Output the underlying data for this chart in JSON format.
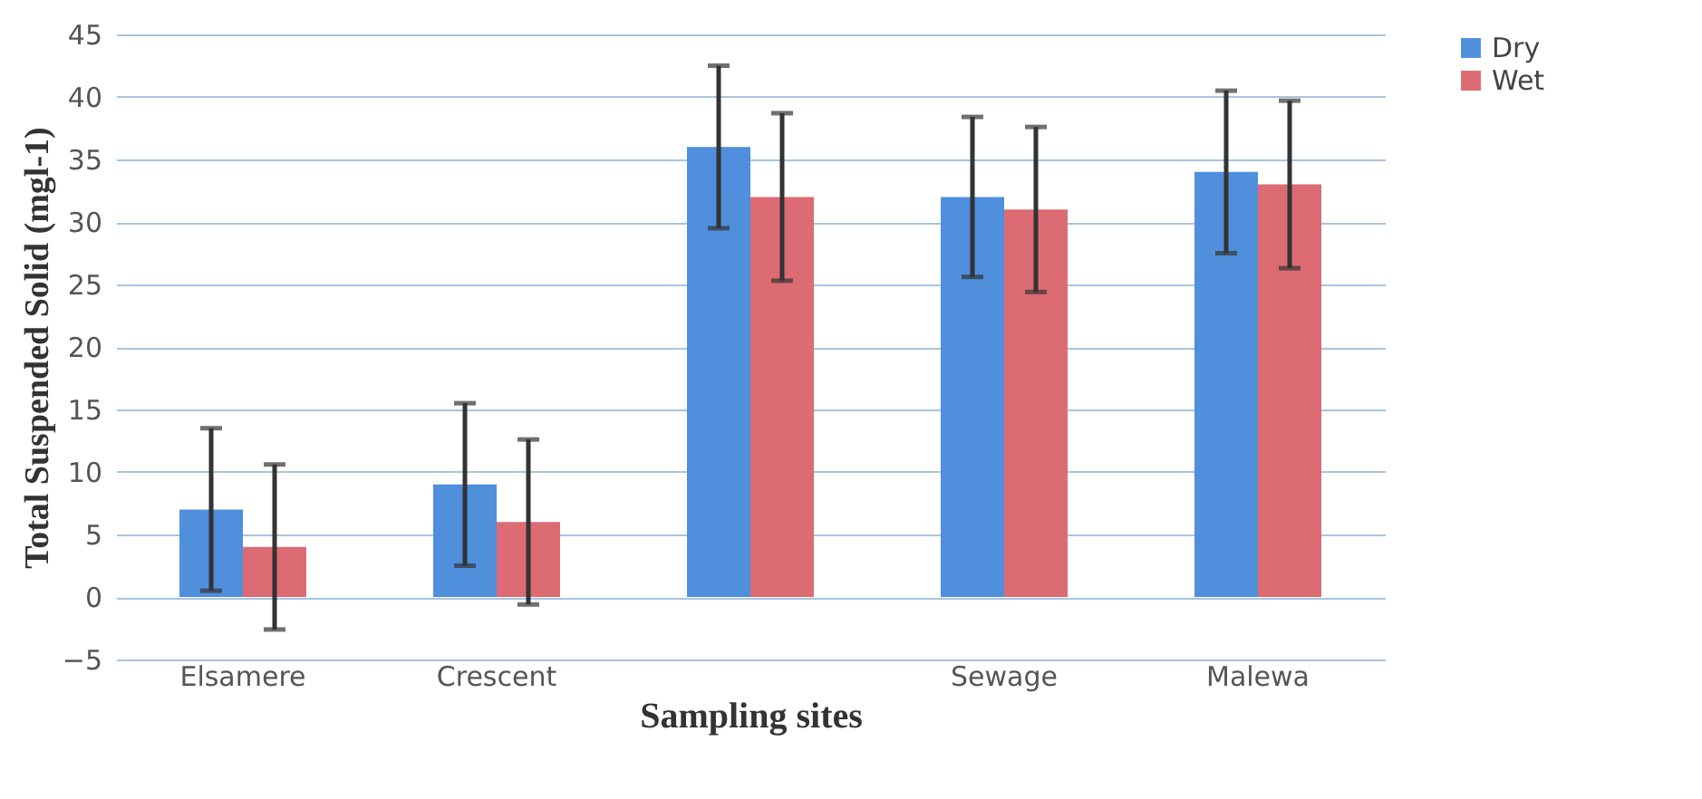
{
  "chart_data": {
    "type": "bar",
    "xlabel": "Sampling sites",
    "ylabel": "Total Suspended Solid (mgl-1)",
    "categories": [
      "Elsamere",
      "Crescent",
      null,
      "Sewage",
      "Malewa"
    ],
    "series": [
      {
        "name": "Dry",
        "color": "#4f8fdc",
        "values": [
          7,
          9,
          36,
          32,
          34
        ],
        "errors": [
          6.5,
          6.5,
          6.5,
          6.4,
          6.5
        ]
      },
      {
        "name": "Wet",
        "color": "#dc6b73",
        "values": [
          4,
          6,
          32,
          31,
          33
        ],
        "errors": [
          6.6,
          6.6,
          6.7,
          6.6,
          6.7
        ]
      }
    ],
    "ylim": [
      -5,
      45
    ],
    "yticks": [
      -5,
      0,
      5,
      10,
      15,
      20,
      25,
      30,
      35,
      40,
      45
    ],
    "grid": "y",
    "legend": "right"
  }
}
